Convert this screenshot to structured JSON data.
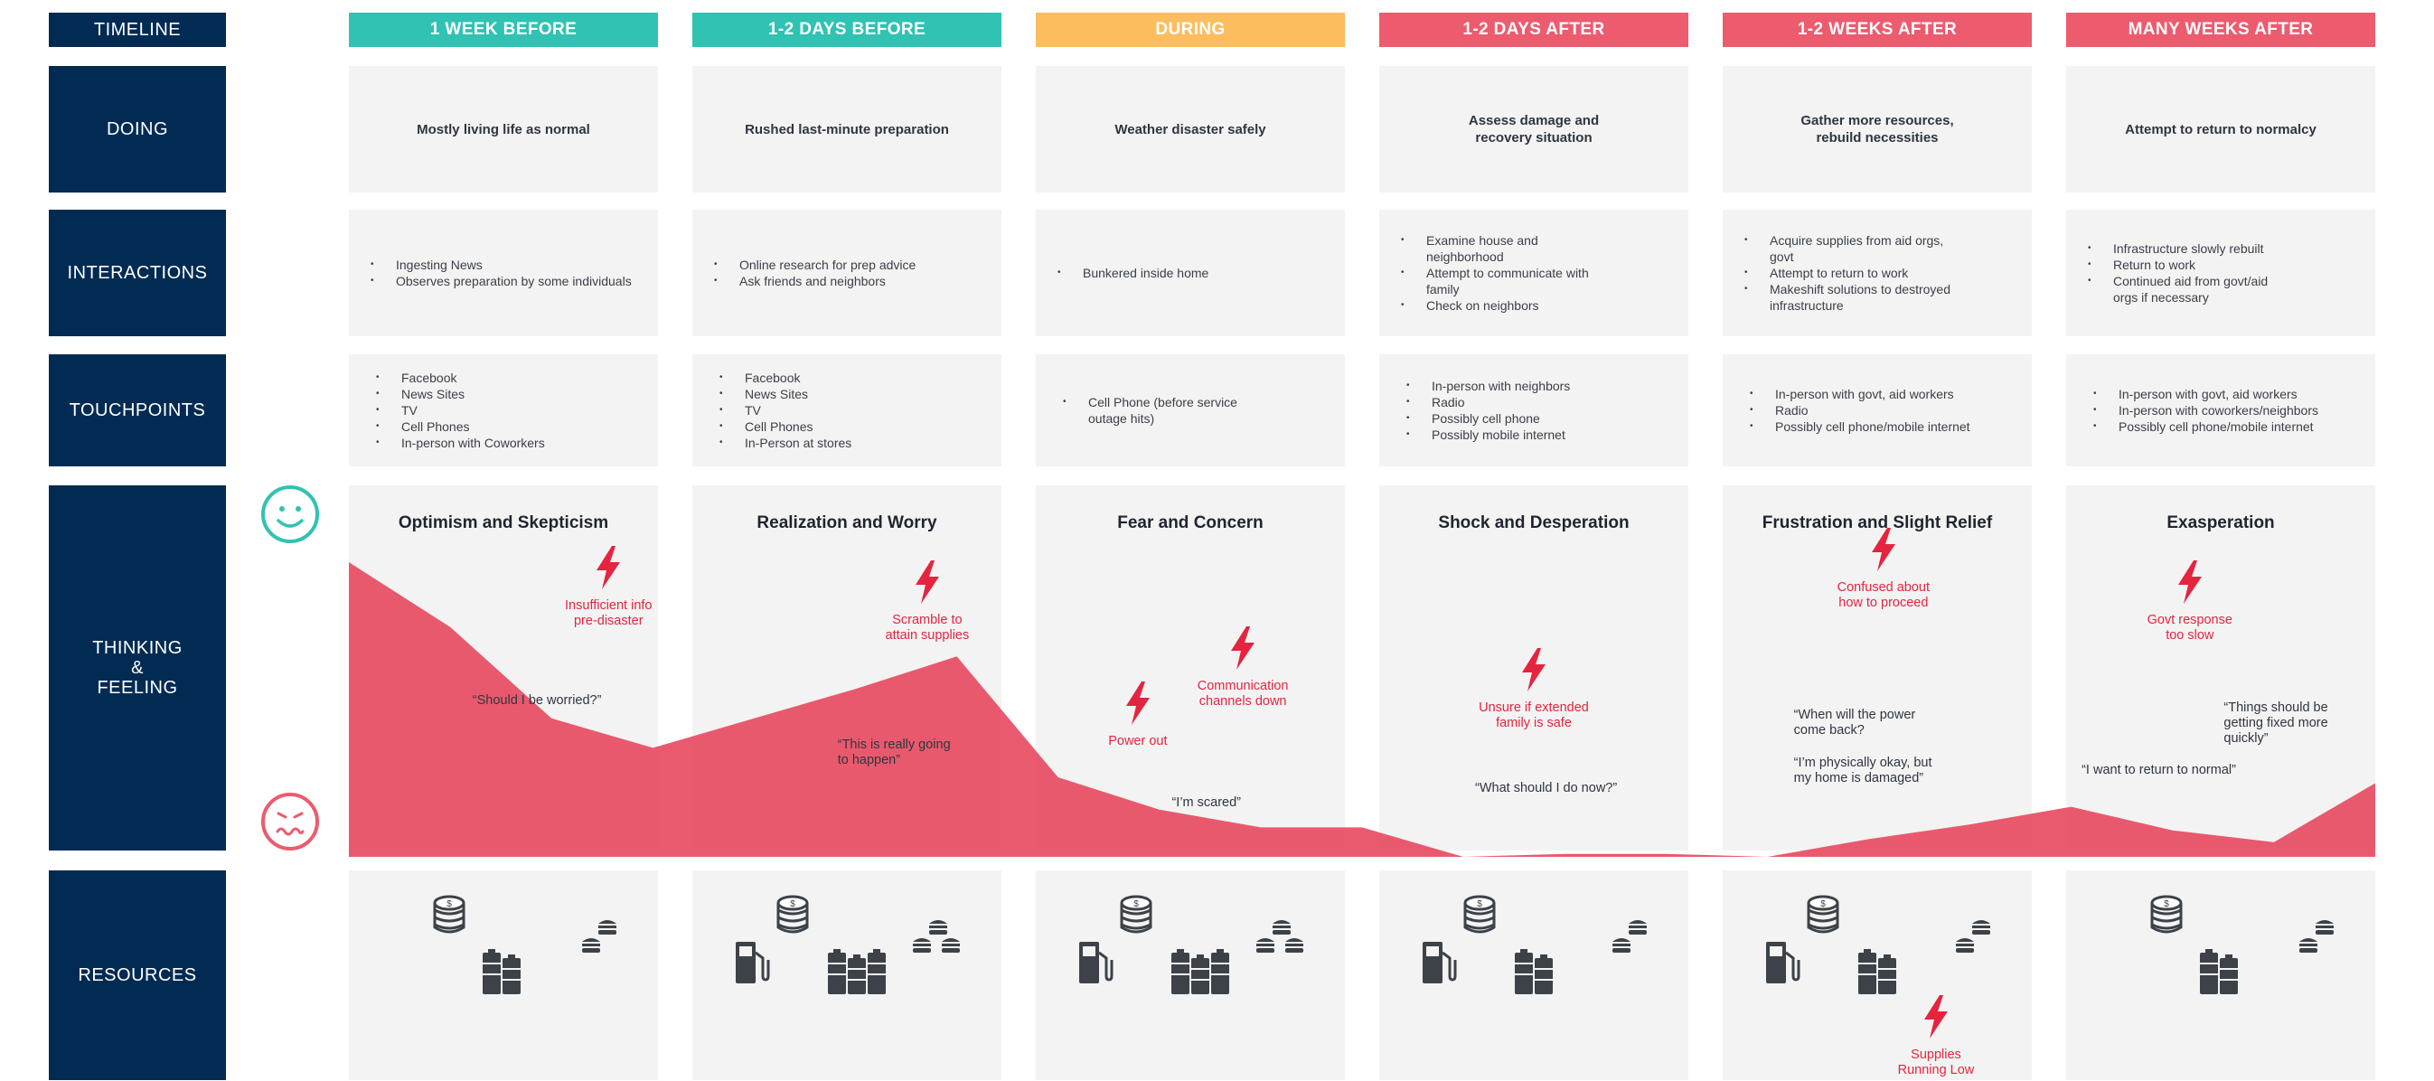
{
  "colors": {
    "label_bg": "#012b53",
    "phase_before": "#30c2b3",
    "phase_during": "#fbbd5e",
    "phase_after": "#ec5b6e",
    "cell_bg": "#f3f3f3",
    "emotion_area": "#e8485e",
    "pain_point": "#e5243f",
    "icon": "#3c4248",
    "happy_face": "#30c2b3",
    "sad_face": "#ec5b6e"
  },
  "row_labels": {
    "timeline": "TIMELINE",
    "doing": "DOING",
    "interactions": "INTERACTIONS",
    "touchpoints": "TOUCHPOINTS",
    "thinking_lines": [
      "THINKING",
      "&",
      "FEELING"
    ],
    "resources": "RESOURCES"
  },
  "phases": [
    {
      "label": "1 WEEK BEFORE",
      "color": "#30c2b3",
      "doing": "Mostly living life as normal",
      "interactions": [
        "Ingesting News",
        "Observes preparation by some individuals"
      ],
      "touchpoints": [
        "Facebook",
        "News Sites",
        "TV",
        "Cell Phones",
        "In-person with Coworkers"
      ],
      "emotion": "Optimism and Skepticism",
      "pain_points": [
        "Insufficient info\npre-disaster"
      ],
      "quotes": [
        "“Should I be worried?”"
      ]
    },
    {
      "label": "1-2 DAYS BEFORE",
      "color": "#30c2b3",
      "doing": "Rushed last-minute preparation",
      "interactions": [
        "Online research for prep advice",
        "Ask friends and neighbors"
      ],
      "touchpoints": [
        "Facebook",
        "News Sites",
        "TV",
        "Cell Phones",
        "In-Person at stores"
      ],
      "emotion": "Realization and Worry",
      "pain_points": [
        "Scramble to\nattain supplies"
      ],
      "quotes": [
        "“This is really going\nto happen”"
      ]
    },
    {
      "label": "DURING",
      "color": "#fbbd5e",
      "doing": "Weather disaster safely",
      "interactions": [
        "Bunkered inside home"
      ],
      "touchpoints": [
        "Cell Phone (before service\noutage hits)"
      ],
      "emotion": "Fear and Concern",
      "pain_points": [
        "Power out",
        "Communication\nchannels down"
      ],
      "quotes": [
        "“I’m scared”"
      ]
    },
    {
      "label": "1-2 DAYS AFTER",
      "color": "#ec5b6e",
      "doing": "Assess damage and\nrecovery situation",
      "interactions": [
        "Examine house and\nneighborhood",
        "Attempt to communicate with\nfamily",
        "Check on neighbors"
      ],
      "touchpoints": [
        "In-person with neighbors",
        "Radio",
        "Possibly cell phone",
        "Possibly mobile internet"
      ],
      "emotion": "Shock and Desperation",
      "pain_points": [
        "Unsure if extended\nfamily is safe"
      ],
      "quotes": [
        "“What should I do now?”"
      ]
    },
    {
      "label": "1-2 WEEKS AFTER",
      "color": "#ec5b6e",
      "doing": "Gather more resources,\nrebuild necessities",
      "interactions": [
        "Acquire supplies from aid orgs,\ngovt",
        "Attempt to return to work",
        "Makeshift solutions to destroyed\ninfrastructure"
      ],
      "touchpoints": [
        "In-person with govt, aid workers",
        "Radio",
        "Possibly cell phone/mobile internet"
      ],
      "emotion": "Frustration and Slight Relief",
      "pain_points": [
        "Confused about\nhow to proceed",
        "Supplies\nRunning Low"
      ],
      "quotes": [
        "“When will the power\ncome back?",
        "“I’m physically okay, but\nmy home is damaged”"
      ]
    },
    {
      "label": "MANY WEEKS AFTER",
      "color": "#ec5b6e",
      "doing": "Attempt to return to normalcy",
      "interactions": [
        "Infrastructure slowly rebuilt",
        "Return to work",
        "Continued aid from govt/aid\norgs if necessary"
      ],
      "touchpoints": [
        "In-person with govt, aid workers",
        "In-person with coworkers/neighbors",
        "Possibly cell phone/mobile internet"
      ],
      "emotion": "Exasperation",
      "pain_points": [
        "Govt response\ntoo slow"
      ],
      "quotes": [
        "“Things should be\ngetting fixed more\nquickly”",
        "“I want to return to normal”"
      ]
    }
  ],
  "emotion_curve": [
    1.0,
    0.78,
    0.47,
    0.37,
    0.47,
    0.57,
    0.68,
    0.27,
    0.16,
    0.1,
    0.1,
    0.0,
    0.01,
    0.01,
    0.0,
    0.06,
    0.11,
    0.17,
    0.09,
    0.05,
    0.25
  ],
  "resources_icons": [
    {
      "money": 1,
      "gas": 0,
      "batteries": 1,
      "food": 1
    },
    {
      "money": 1,
      "gas": 1,
      "batteries": 2,
      "food": 2
    },
    {
      "money": 1,
      "gas": 1,
      "batteries": 2,
      "food": 2
    },
    {
      "money": 1,
      "gas": 1,
      "batteries": 1,
      "food": 1
    },
    {
      "money": 1,
      "gas": 1,
      "batteries": 1,
      "food": 1
    },
    {
      "money": 1,
      "gas": 0,
      "batteries": 1,
      "food": 1
    }
  ]
}
